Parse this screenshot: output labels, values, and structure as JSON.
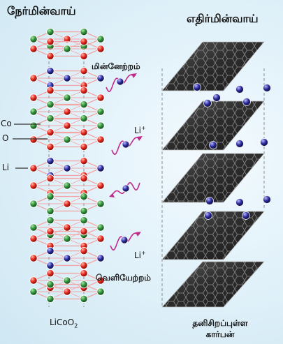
{
  "labels": {
    "cathode": "நேர்மின்வாய்",
    "anode": "எதிர்மின்வாய்",
    "charging": "மின்னேற்றம்",
    "discharging": "வெளியேற்றம்",
    "cobalt": "Co",
    "oxygen": "O",
    "lithium": "Li",
    "ion1": "Li",
    "ion2": "Li",
    "cathode_material": "LiCoO",
    "cathode_subscript": "2",
    "anode_material_line1": "தனிசிறப்புள்ள",
    "anode_material_line2": "கார்பன்"
  },
  "colors": {
    "cobalt": "#2f8f3a",
    "oxygen": "#e0261c",
    "lithium": "#2a2a9a",
    "bond": "#f4a6a6",
    "graphite": "#3c3c3c",
    "wave": "#c02a8a",
    "background": "#d7ecf6"
  }
}
